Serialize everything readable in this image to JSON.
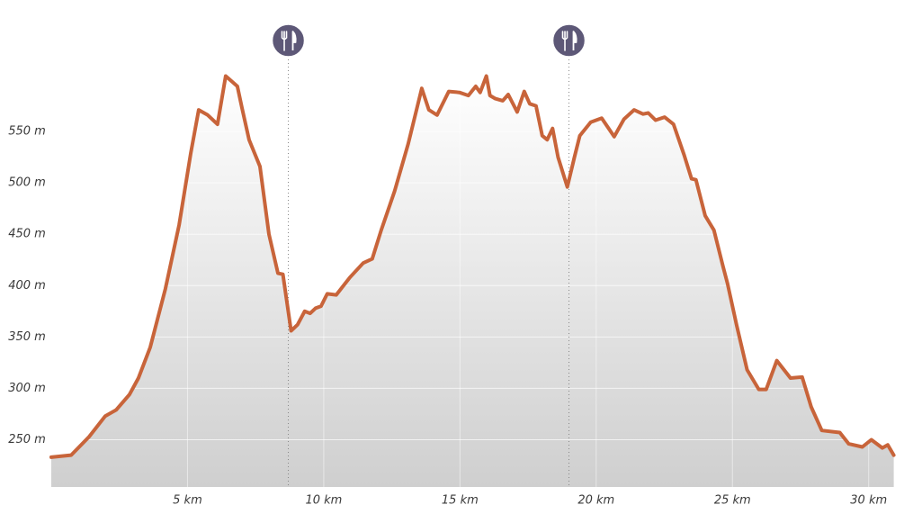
{
  "chart_data": {
    "type": "area",
    "x": [
      0,
      0.73,
      1.39,
      1.98,
      2.38,
      2.87,
      3.2,
      3.63,
      4.19,
      4.69,
      5.12,
      5.41,
      5.74,
      6.1,
      6.4,
      6.83,
      7.0,
      7.26,
      7.66,
      7.99,
      8.32,
      8.5,
      8.8,
      9.04,
      9.3,
      9.5,
      9.7,
      9.9,
      10.13,
      10.46,
      10.96,
      11.45,
      11.78,
      12.11,
      12.6,
      13.1,
      13.6,
      13.86,
      14.16,
      14.59,
      14.98,
      15.31,
      15.58,
      15.74,
      15.97,
      16.1,
      16.3,
      16.57,
      16.77,
      17.1,
      17.36,
      17.56,
      17.79,
      18.02,
      18.2,
      18.4,
      18.6,
      18.94,
      19.2,
      19.4,
      19.8,
      20.2,
      20.66,
      21.02,
      21.39,
      21.72,
      21.91,
      22.18,
      22.51,
      22.84,
      23.23,
      23.5,
      23.66,
      24.0,
      24.32,
      24.65,
      24.82,
      25.15,
      25.54,
      25.97,
      26.24,
      26.63,
      27.13,
      27.56,
      27.89,
      28.28,
      28.94,
      29.27,
      29.77,
      30.1,
      30.5,
      30.7,
      30.92
    ],
    "values": [
      233,
      235,
      253,
      273,
      279,
      294,
      310,
      340,
      397,
      459,
      529,
      571,
      566,
      557,
      604,
      594,
      573,
      542,
      516,
      450,
      412,
      411,
      356,
      362,
      375,
      373,
      378,
      380,
      392,
      391,
      408,
      422,
      426,
      454,
      492,
      538,
      592,
      571,
      566,
      589,
      588,
      585,
      594,
      588,
      604,
      585,
      582,
      580,
      586,
      569,
      589,
      577,
      575,
      546,
      542,
      553,
      525,
      496,
      525,
      546,
      559,
      563,
      545,
      562,
      571,
      567,
      568,
      561,
      564,
      557,
      527,
      504,
      503,
      468,
      454,
      419,
      402,
      362,
      318,
      299,
      299,
      327,
      310,
      311,
      282,
      259,
      257,
      246,
      243,
      250,
      242,
      245,
      235
    ],
    "color": "#c8643a",
    "xlim": [
      0,
      31
    ],
    "ylim": [
      204,
      678
    ],
    "xticks": [
      {
        "value": 5,
        "label": "5 km"
      },
      {
        "value": 10,
        "label": "10 km"
      },
      {
        "value": 15,
        "label": "15 km"
      },
      {
        "value": 20,
        "label": "20 km"
      },
      {
        "value": 25,
        "label": "25 km"
      },
      {
        "value": 30,
        "label": "30 km"
      }
    ],
    "yticks": [
      {
        "value": 250,
        "label": "250 m"
      },
      {
        "value": 300,
        "label": "300 m"
      },
      {
        "value": 350,
        "label": "350 m"
      },
      {
        "value": 400,
        "label": "400 m"
      },
      {
        "value": 450,
        "label": "450 m"
      },
      {
        "value": 500,
        "label": "500 m"
      },
      {
        "value": 550,
        "label": "550 m"
      }
    ],
    "grid": true,
    "markers": [
      8.7,
      19.0
    ]
  }
}
